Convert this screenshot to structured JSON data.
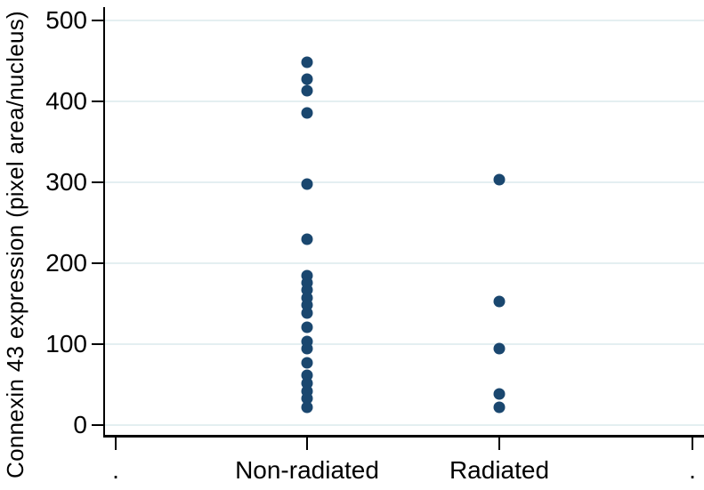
{
  "chart_data": {
    "type": "scatter",
    "title": "",
    "xlabel": "",
    "ylabel": "Connexin 43 expression (pixel area/nucleus)",
    "categories": [
      "Non-radiated",
      "Radiated"
    ],
    "outer_tick_labels": [
      ".",
      "."
    ],
    "series": [
      {
        "name": "Non-radiated",
        "values": [
          448,
          428,
          413,
          386,
          298,
          230,
          185,
          176,
          167,
          157,
          148,
          139,
          121,
          103,
          94,
          77,
          62,
          52,
          42,
          33,
          22
        ]
      },
      {
        "name": "Radiated",
        "values": [
          303,
          153,
          95,
          38,
          22
        ]
      }
    ],
    "yticks": [
      0,
      100,
      200,
      300,
      400,
      500
    ],
    "ylim": [
      0,
      500
    ],
    "grid": true,
    "legend": "none",
    "marker_color": "#1a476f",
    "gridline_color": "#e4eff1",
    "axis_color": "#000000",
    "background_color": "#ffffff"
  }
}
